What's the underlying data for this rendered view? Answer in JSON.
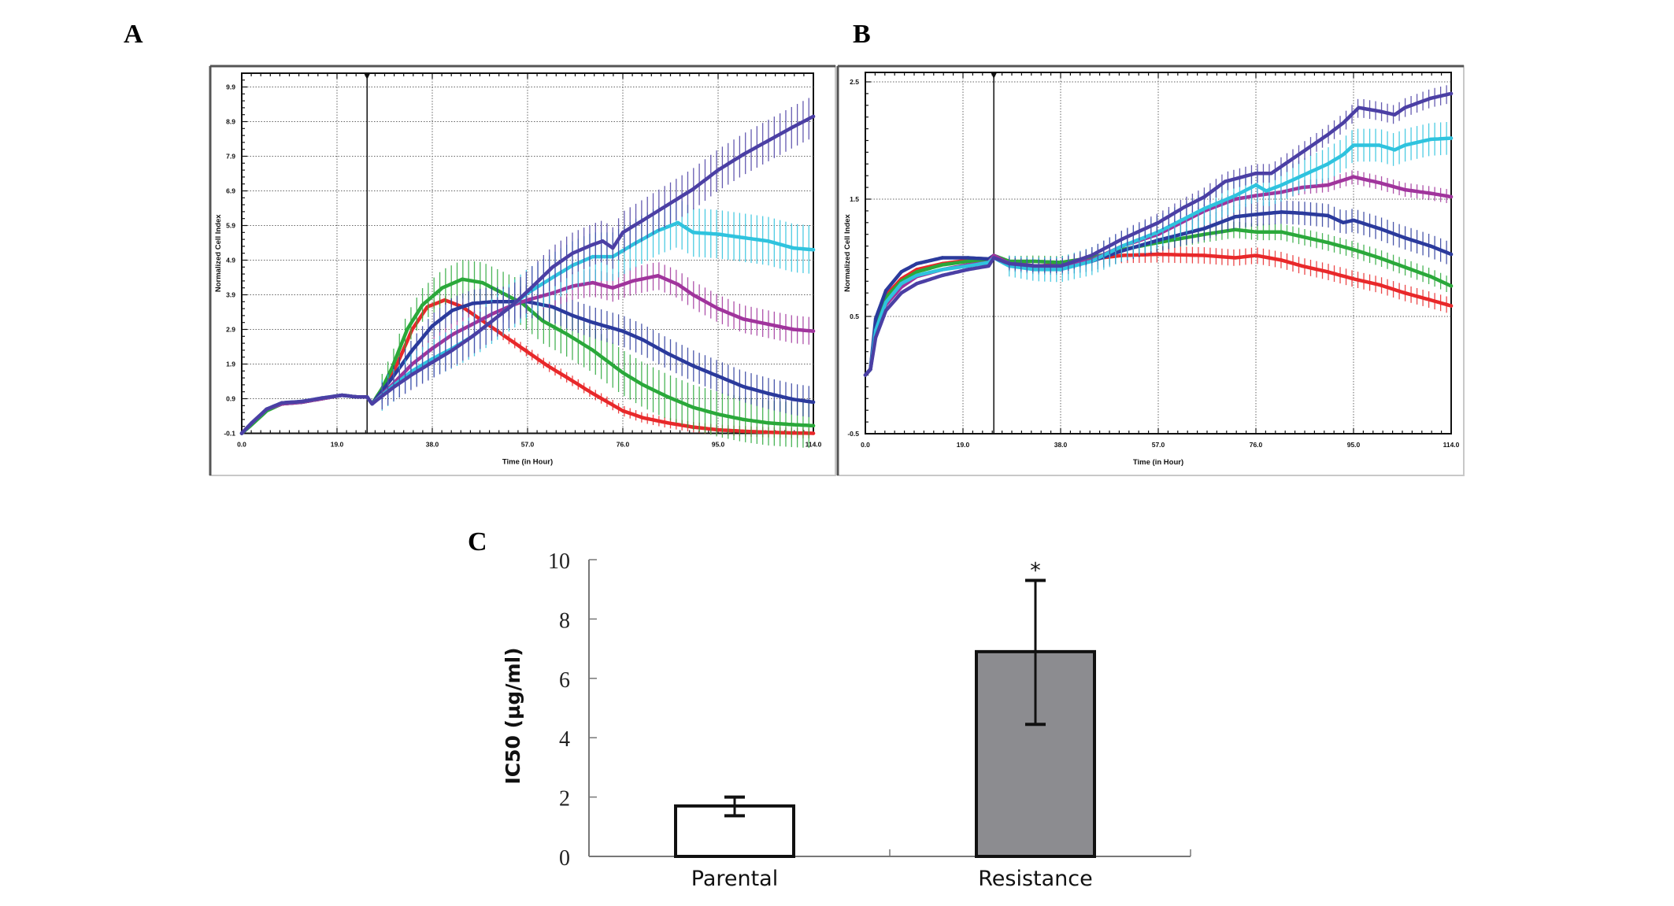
{
  "panels": {
    "a": "A",
    "b": "B",
    "c": "C"
  },
  "chart_data": [
    {
      "id": "A",
      "type": "line",
      "title": "",
      "xlabel": "Time (in Hour)",
      "ylabel": "Normalized Cell Index",
      "xlim": [
        0,
        114
      ],
      "ylim": [
        -0.1,
        10.2
      ],
      "x_ticks": [
        "0.0",
        "19.0",
        "38.0",
        "57.0",
        "76.0",
        "95.0",
        "114.0"
      ],
      "x_tick_values": [
        0,
        19,
        38,
        57,
        76,
        95,
        114
      ],
      "y_ticks": [
        "-0.1",
        "0.9",
        "1.9",
        "2.9",
        "3.9",
        "4.9",
        "5.9",
        "6.9",
        "7.9",
        "8.9",
        "9.9"
      ],
      "y_tick_values": [
        -0.1,
        0.9,
        1.9,
        2.9,
        3.9,
        4.9,
        5.9,
        6.9,
        7.9,
        8.9,
        9.9
      ],
      "grid": true,
      "treatment_time": 25,
      "error_bars": true,
      "series": [
        {
          "name": "red",
          "color": "#e8282a",
          "x": [
            0,
            2,
            5,
            8,
            12,
            16,
            20,
            23,
            25,
            26,
            28,
            31,
            34,
            37,
            40.5,
            44,
            47,
            50,
            54,
            57,
            61,
            65,
            70,
            76,
            80,
            85,
            90,
            95,
            100,
            105,
            110,
            114
          ],
          "y": [
            -0.1,
            0.2,
            0.6,
            0.75,
            0.8,
            0.9,
            1.0,
            0.95,
            0.95,
            0.75,
            1.1,
            1.9,
            2.9,
            3.55,
            3.75,
            3.55,
            3.25,
            2.95,
            2.55,
            2.25,
            1.85,
            1.5,
            1.05,
            0.55,
            0.35,
            0.2,
            0.08,
            0.0,
            -0.04,
            -0.07,
            -0.09,
            -0.1
          ],
          "err": 0.15
        },
        {
          "name": "green",
          "color": "#2aa83a",
          "x": [
            0,
            2,
            5,
            8,
            12,
            16,
            20,
            23,
            25,
            26,
            28,
            30,
            33,
            36,
            40,
            44,
            48,
            52,
            56,
            60,
            65,
            70,
            76,
            80,
            85,
            90,
            95,
            100,
            105,
            110,
            114
          ],
          "y": [
            -0.1,
            0.15,
            0.55,
            0.75,
            0.8,
            0.9,
            1.0,
            0.95,
            0.95,
            0.75,
            1.2,
            1.8,
            2.9,
            3.6,
            4.1,
            4.35,
            4.25,
            3.95,
            3.65,
            3.15,
            2.75,
            2.3,
            1.65,
            1.3,
            0.95,
            0.65,
            0.45,
            0.3,
            0.2,
            0.15,
            0.12
          ],
          "err": 0.65
        },
        {
          "name": "blue",
          "color": "#2b3a9c",
          "x": [
            0,
            2,
            5,
            8,
            12,
            16,
            20,
            23,
            25,
            26,
            30,
            34,
            38,
            42,
            46,
            50,
            54,
            57,
            62,
            66,
            70,
            76,
            80,
            85,
            90,
            95,
            100,
            105,
            110,
            114
          ],
          "y": [
            -0.1,
            0.2,
            0.6,
            0.75,
            0.8,
            0.9,
            1.0,
            0.95,
            0.95,
            0.75,
            1.5,
            2.3,
            3.0,
            3.45,
            3.65,
            3.7,
            3.7,
            3.7,
            3.55,
            3.3,
            3.1,
            2.85,
            2.6,
            2.2,
            1.85,
            1.55,
            1.25,
            1.05,
            0.88,
            0.8
          ],
          "err": 0.45
        },
        {
          "name": "magenta",
          "color": "#a0349c",
          "x": [
            0,
            2,
            5,
            8,
            12,
            16,
            20,
            23,
            25,
            26,
            30,
            34,
            38,
            42,
            46,
            50,
            54,
            57,
            62,
            66,
            70,
            74,
            78,
            83,
            87,
            90,
            95,
            100,
            105,
            110,
            114
          ],
          "y": [
            -0.1,
            0.2,
            0.6,
            0.75,
            0.8,
            0.9,
            1.0,
            0.95,
            0.95,
            0.75,
            1.3,
            1.9,
            2.35,
            2.75,
            3.05,
            3.35,
            3.6,
            3.75,
            3.95,
            4.15,
            4.25,
            4.1,
            4.3,
            4.45,
            4.2,
            3.9,
            3.5,
            3.2,
            3.05,
            2.9,
            2.85
          ],
          "err": 0.4
        },
        {
          "name": "cyan",
          "color": "#2fc3de",
          "x": [
            0,
            2,
            5,
            8,
            12,
            16,
            20,
            23,
            25,
            26,
            30,
            34,
            38,
            42,
            46,
            50,
            54,
            57,
            62,
            66,
            70,
            74,
            78,
            83,
            87,
            90,
            95,
            100,
            105,
            110,
            114
          ],
          "y": [
            -0.1,
            0.2,
            0.6,
            0.78,
            0.82,
            0.92,
            1.0,
            0.95,
            0.95,
            0.75,
            1.25,
            1.7,
            2.05,
            2.35,
            2.7,
            3.15,
            3.6,
            3.95,
            4.4,
            4.75,
            5.0,
            5.0,
            5.35,
            5.75,
            5.98,
            5.7,
            5.65,
            5.55,
            5.45,
            5.25,
            5.2
          ],
          "err": 0.7
        },
        {
          "name": "purple",
          "color": "#4b3fa4",
          "x": [
            0,
            2,
            5,
            8,
            12,
            16,
            20,
            23,
            25,
            26,
            30,
            34,
            38,
            42,
            46,
            50,
            54,
            57,
            62,
            66,
            70,
            72,
            74,
            76,
            80,
            85,
            90,
            95,
            100,
            105,
            110,
            114
          ],
          "y": [
            -0.1,
            0.2,
            0.6,
            0.78,
            0.82,
            0.92,
            1.0,
            0.95,
            0.95,
            0.75,
            1.2,
            1.6,
            1.95,
            2.3,
            2.7,
            3.15,
            3.6,
            4.0,
            4.7,
            5.1,
            5.35,
            5.45,
            5.25,
            5.7,
            6.05,
            6.5,
            6.95,
            7.5,
            7.95,
            8.35,
            8.75,
            9.05
          ],
          "err": 0.6
        }
      ]
    },
    {
      "id": "B",
      "type": "line",
      "title": "",
      "xlabel": "Time (in Hour)",
      "ylabel": "Normalized Cell Index",
      "xlim": [
        0,
        114
      ],
      "ylim": [
        -0.5,
        2.58
      ],
      "x_ticks": [
        "0.0",
        "19.0",
        "38.0",
        "57.0",
        "76.0",
        "95.0",
        "114.0"
      ],
      "x_tick_values": [
        0,
        19,
        38,
        57,
        76,
        95,
        114
      ],
      "y_ticks": [
        "-0.5",
        "0.5",
        "1.5",
        "2.5"
      ],
      "y_tick_values": [
        -0.5,
        0.5,
        1.5,
        2.5
      ],
      "grid": true,
      "treatment_time": 25,
      "error_bars": true,
      "series": [
        {
          "name": "red",
          "color": "#e8282a",
          "x": [
            0,
            1,
            2,
            4,
            7,
            10,
            15,
            20,
            24,
            25,
            28,
            33,
            38,
            44,
            50,
            57,
            66,
            72,
            76,
            81,
            85,
            90,
            95,
            100,
            105,
            110,
            114
          ],
          "y": [
            0.0,
            0.05,
            0.42,
            0.68,
            0.82,
            0.9,
            0.95,
            0.98,
            0.98,
            1.02,
            0.96,
            0.93,
            0.94,
            0.99,
            1.02,
            1.03,
            1.02,
            1.0,
            1.02,
            0.98,
            0.93,
            0.88,
            0.82,
            0.77,
            0.7,
            0.64,
            0.59
          ],
          "err": 0.07
        },
        {
          "name": "green",
          "color": "#2aa83a",
          "x": [
            0,
            1,
            2,
            4,
            7,
            10,
            15,
            20,
            24,
            25,
            28,
            33,
            38,
            44,
            50,
            57,
            66,
            72,
            76,
            81,
            85,
            90,
            95,
            100,
            105,
            110,
            114
          ],
          "y": [
            0.0,
            0.05,
            0.4,
            0.66,
            0.8,
            0.88,
            0.94,
            0.97,
            0.98,
            1.02,
            0.97,
            0.97,
            0.96,
            1.0,
            1.07,
            1.13,
            1.2,
            1.24,
            1.22,
            1.22,
            1.18,
            1.13,
            1.07,
            1.0,
            0.92,
            0.84,
            0.76
          ],
          "err": 0.07
        },
        {
          "name": "blue",
          "color": "#2b3a9c",
          "x": [
            0,
            1,
            2,
            4,
            7,
            10,
            15,
            20,
            24,
            25,
            28,
            33,
            38,
            44,
            50,
            57,
            66,
            72,
            76,
            81,
            85,
            90,
            93,
            95,
            100,
            105,
            110,
            114
          ],
          "y": [
            0.0,
            0.05,
            0.48,
            0.72,
            0.88,
            0.95,
            1.0,
            1.0,
            0.99,
            1.02,
            0.95,
            0.93,
            0.93,
            0.97,
            1.06,
            1.15,
            1.25,
            1.35,
            1.37,
            1.39,
            1.38,
            1.36,
            1.3,
            1.32,
            1.25,
            1.17,
            1.1,
            1.03
          ],
          "err": 0.1
        },
        {
          "name": "magenta",
          "color": "#a0349c",
          "x": [
            0,
            1,
            2,
            4,
            7,
            10,
            15,
            20,
            24,
            25,
            28,
            33,
            38,
            44,
            50,
            57,
            66,
            72,
            76,
            81,
            85,
            90,
            95,
            100,
            105,
            110,
            114
          ],
          "y": [
            0.0,
            0.05,
            0.36,
            0.6,
            0.75,
            0.84,
            0.9,
            0.94,
            0.96,
            1.02,
            0.95,
            0.93,
            0.93,
            0.98,
            1.1,
            1.2,
            1.4,
            1.5,
            1.53,
            1.56,
            1.6,
            1.62,
            1.69,
            1.64,
            1.58,
            1.55,
            1.52
          ],
          "err": 0.06
        },
        {
          "name": "cyan",
          "color": "#2fc3de",
          "x": [
            0,
            1,
            2,
            4,
            7,
            10,
            15,
            20,
            24,
            25,
            28,
            33,
            38,
            44,
            50,
            57,
            66,
            72,
            76,
            78,
            81,
            85,
            90,
            93,
            95,
            100,
            103,
            105,
            110,
            114
          ],
          "y": [
            0.0,
            0.05,
            0.38,
            0.62,
            0.78,
            0.85,
            0.9,
            0.93,
            0.96,
            1.0,
            0.93,
            0.9,
            0.9,
            0.97,
            1.1,
            1.22,
            1.42,
            1.53,
            1.62,
            1.57,
            1.62,
            1.7,
            1.8,
            1.88,
            1.96,
            1.96,
            1.92,
            1.96,
            2.01,
            2.02
          ],
          "err": 0.14
        },
        {
          "name": "purple",
          "color": "#4b3fa4",
          "x": [
            0,
            1,
            2,
            4,
            7,
            10,
            15,
            20,
            24,
            25,
            28,
            33,
            38,
            44,
            50,
            57,
            62,
            66,
            70,
            76,
            79,
            85,
            90,
            93,
            96,
            100,
            103,
            105,
            110,
            114
          ],
          "y": [
            0.0,
            0.05,
            0.32,
            0.55,
            0.7,
            0.78,
            0.85,
            0.9,
            0.93,
            1.0,
            0.95,
            0.93,
            0.93,
            1.02,
            1.16,
            1.3,
            1.43,
            1.52,
            1.65,
            1.72,
            1.72,
            1.9,
            2.05,
            2.15,
            2.28,
            2.25,
            2.22,
            2.28,
            2.36,
            2.4
          ],
          "err": 0.08
        }
      ]
    },
    {
      "id": "C",
      "type": "bar",
      "title": "",
      "xlabel": "",
      "ylabel": "IC50 (µg/ml)",
      "categories": [
        "Parental",
        "Resistance"
      ],
      "values": [
        1.7,
        6.9
      ],
      "error_low": [
        1.37,
        4.45
      ],
      "error_high": [
        2.0,
        9.3
      ],
      "bar_colors": [
        "#ffffff",
        "#8c8c90"
      ],
      "ylim": [
        0,
        10
      ],
      "y_ticks": [
        "0",
        "2",
        "4",
        "6",
        "8",
        "10"
      ],
      "y_tick_values": [
        0,
        2,
        4,
        6,
        8,
        10
      ],
      "annotations": [
        {
          "category": "Resistance",
          "text": "*"
        }
      ],
      "grid": false
    }
  ]
}
